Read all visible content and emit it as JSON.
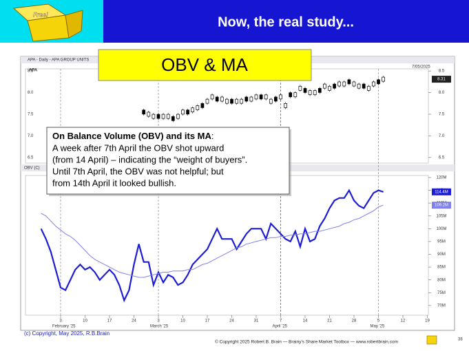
{
  "header": {
    "title": "Now, the real study...",
    "logo_text": "Free!"
  },
  "label": "OBV & MA",
  "callout": {
    "heading": "On Balance Volume (OBV) and its MA",
    "heading_suffix": ":",
    "lines": [
      "A week after 7th April the OBV shot upward",
      "(from 14 April) – indicating the “weight of buyers”.",
      "Until 7th April, the OBV was not helpful; but",
      "from 14th April it looked bullish."
    ]
  },
  "chart_window": {
    "title": "APA - Daily - APA GROUP UNITS",
    "date": "7/05/2025",
    "indicator": "OBV (C)",
    "months": [
      "February '25",
      "March '25",
      "April '25",
      "May '25"
    ]
  },
  "chart_data": [
    {
      "type": "candlestick",
      "series": [
        {
          "name": "APA",
          "color": "#000000",
          "last_label": "8.31",
          "values": [
            null,
            null,
            null,
            null,
            null,
            null,
            null,
            null,
            null,
            null,
            null,
            null,
            null,
            null,
            null,
            null,
            null,
            null,
            null,
            null,
            7.1,
            7.55,
            7.5,
            7.45,
            7.45,
            7.45,
            7.45,
            7.4,
            7.45,
            7.55,
            7.55,
            7.6,
            7.65,
            7.7,
            7.8,
            7.9,
            7.85,
            7.85,
            7.8,
            7.8,
            7.8,
            7.8,
            7.85,
            7.85,
            7.9,
            7.9,
            7.9,
            7.8,
            7.85,
            7.9,
            7.7,
            7.95,
            7.95,
            8.1,
            8.05,
            8.0,
            8.0,
            8.05,
            8.15,
            8.1,
            8.15,
            8.2,
            8.2,
            8.25,
            8.2,
            8.15,
            8.15,
            8.1,
            8.2,
            8.25,
            8.31,
            null,
            null,
            null,
            null,
            null,
            null,
            null,
            null,
            null
          ]
        }
      ],
      "ylim": [
        6.37,
        8.55
      ],
      "yticks": [
        8.5,
        {
          "value": 8,
          "label": "8.0"
        },
        7.5,
        {
          "value": 7,
          "label": "7.0"
        },
        6.5
      ]
    },
    {
      "type": "line",
      "categories": [
        null,
        null,
        null,
        null,
        "3",
        null,
        null,
        null,
        null,
        "10",
        null,
        null,
        null,
        null,
        "17",
        null,
        null,
        null,
        null,
        "24",
        null,
        null,
        null,
        null,
        "3",
        null,
        null,
        null,
        null,
        "10",
        null,
        null,
        null,
        null,
        "17",
        null,
        null,
        null,
        null,
        "24",
        null,
        null,
        null,
        null,
        "31",
        null,
        null,
        null,
        null,
        "7",
        null,
        null,
        null,
        null,
        "14",
        null,
        null,
        null,
        null,
        "21",
        null,
        null,
        null,
        null,
        "28",
        null,
        null,
        null,
        null,
        "5",
        null,
        null,
        null,
        null,
        "12",
        null,
        null,
        null,
        null,
        "19"
      ],
      "series": [
        {
          "name": "OBV",
          "color": "#1c1cd8",
          "last_label": "114.4M",
          "values": [
            100,
            96,
            91,
            84,
            77,
            76,
            80,
            84,
            86,
            84,
            85,
            83,
            80,
            82,
            84,
            82,
            78,
            72,
            76,
            86,
            94,
            87,
            87,
            78,
            83,
            79,
            82,
            81,
            78,
            79,
            82,
            86,
            88,
            90,
            92,
            96,
            100,
            96,
            96,
            96,
            92,
            95,
            98,
            100,
            100,
            100,
            96,
            102,
            100,
            98,
            96,
            95,
            99,
            93,
            100,
            95,
            96,
            101,
            104,
            108,
            111,
            112,
            112,
            115,
            111,
            109,
            108,
            111,
            114,
            115,
            114.4,
            null,
            null,
            null,
            null,
            null,
            null,
            null,
            null,
            null
          ]
        },
        {
          "name": "MA",
          "color": "#8080ee",
          "last_label": "109.2M",
          "values": [
            106,
            105,
            103,
            101,
            99.5,
            98,
            97,
            95.5,
            93.5,
            91.5,
            89.5,
            88,
            87,
            86,
            85,
            84,
            83,
            82.5,
            82,
            81.5,
            81,
            81,
            81.5,
            82,
            82.5,
            83,
            83,
            83.5,
            83.5,
            83.5,
            84,
            84,
            85,
            86,
            86.5,
            87.5,
            88.5,
            89.5,
            90.5,
            91.5,
            92.5,
            93,
            94,
            94.5,
            95,
            95.5,
            96,
            96.5,
            96.5,
            97,
            97,
            97.5,
            97.5,
            98,
            98,
            98.5,
            99,
            99,
            99.5,
            100,
            100.5,
            101,
            102,
            102.5,
            103.5,
            104,
            105,
            106,
            107,
            108.5,
            109.2,
            null,
            null,
            null,
            null,
            null,
            null,
            null,
            null,
            null
          ]
        }
      ],
      "ylim": [
        66.2,
        120.8
      ],
      "yticks": [
        {
          "value": 120,
          "label": "120M"
        },
        {
          "value": 115,
          "label": "115M"
        },
        {
          "value": 110,
          "label": "110M"
        },
        {
          "value": 105,
          "label": "105M"
        },
        {
          "value": 100,
          "label": "100M"
        },
        {
          "value": 95,
          "label": "95M"
        },
        {
          "value": 90,
          "label": "90M"
        },
        {
          "value": 85,
          "label": "85M"
        },
        {
          "value": 80,
          "label": "80M"
        },
        {
          "value": 75,
          "label": "75M"
        },
        {
          "value": 70,
          "label": "70M"
        }
      ]
    }
  ],
  "copyright": "(c) Copyright, May 2025, R.B.Brain",
  "footer": "© Copyright 2025 Robert B. Brain — Brainy's Share Market Toolbox — www.robertbrain.com",
  "page_number": "38"
}
